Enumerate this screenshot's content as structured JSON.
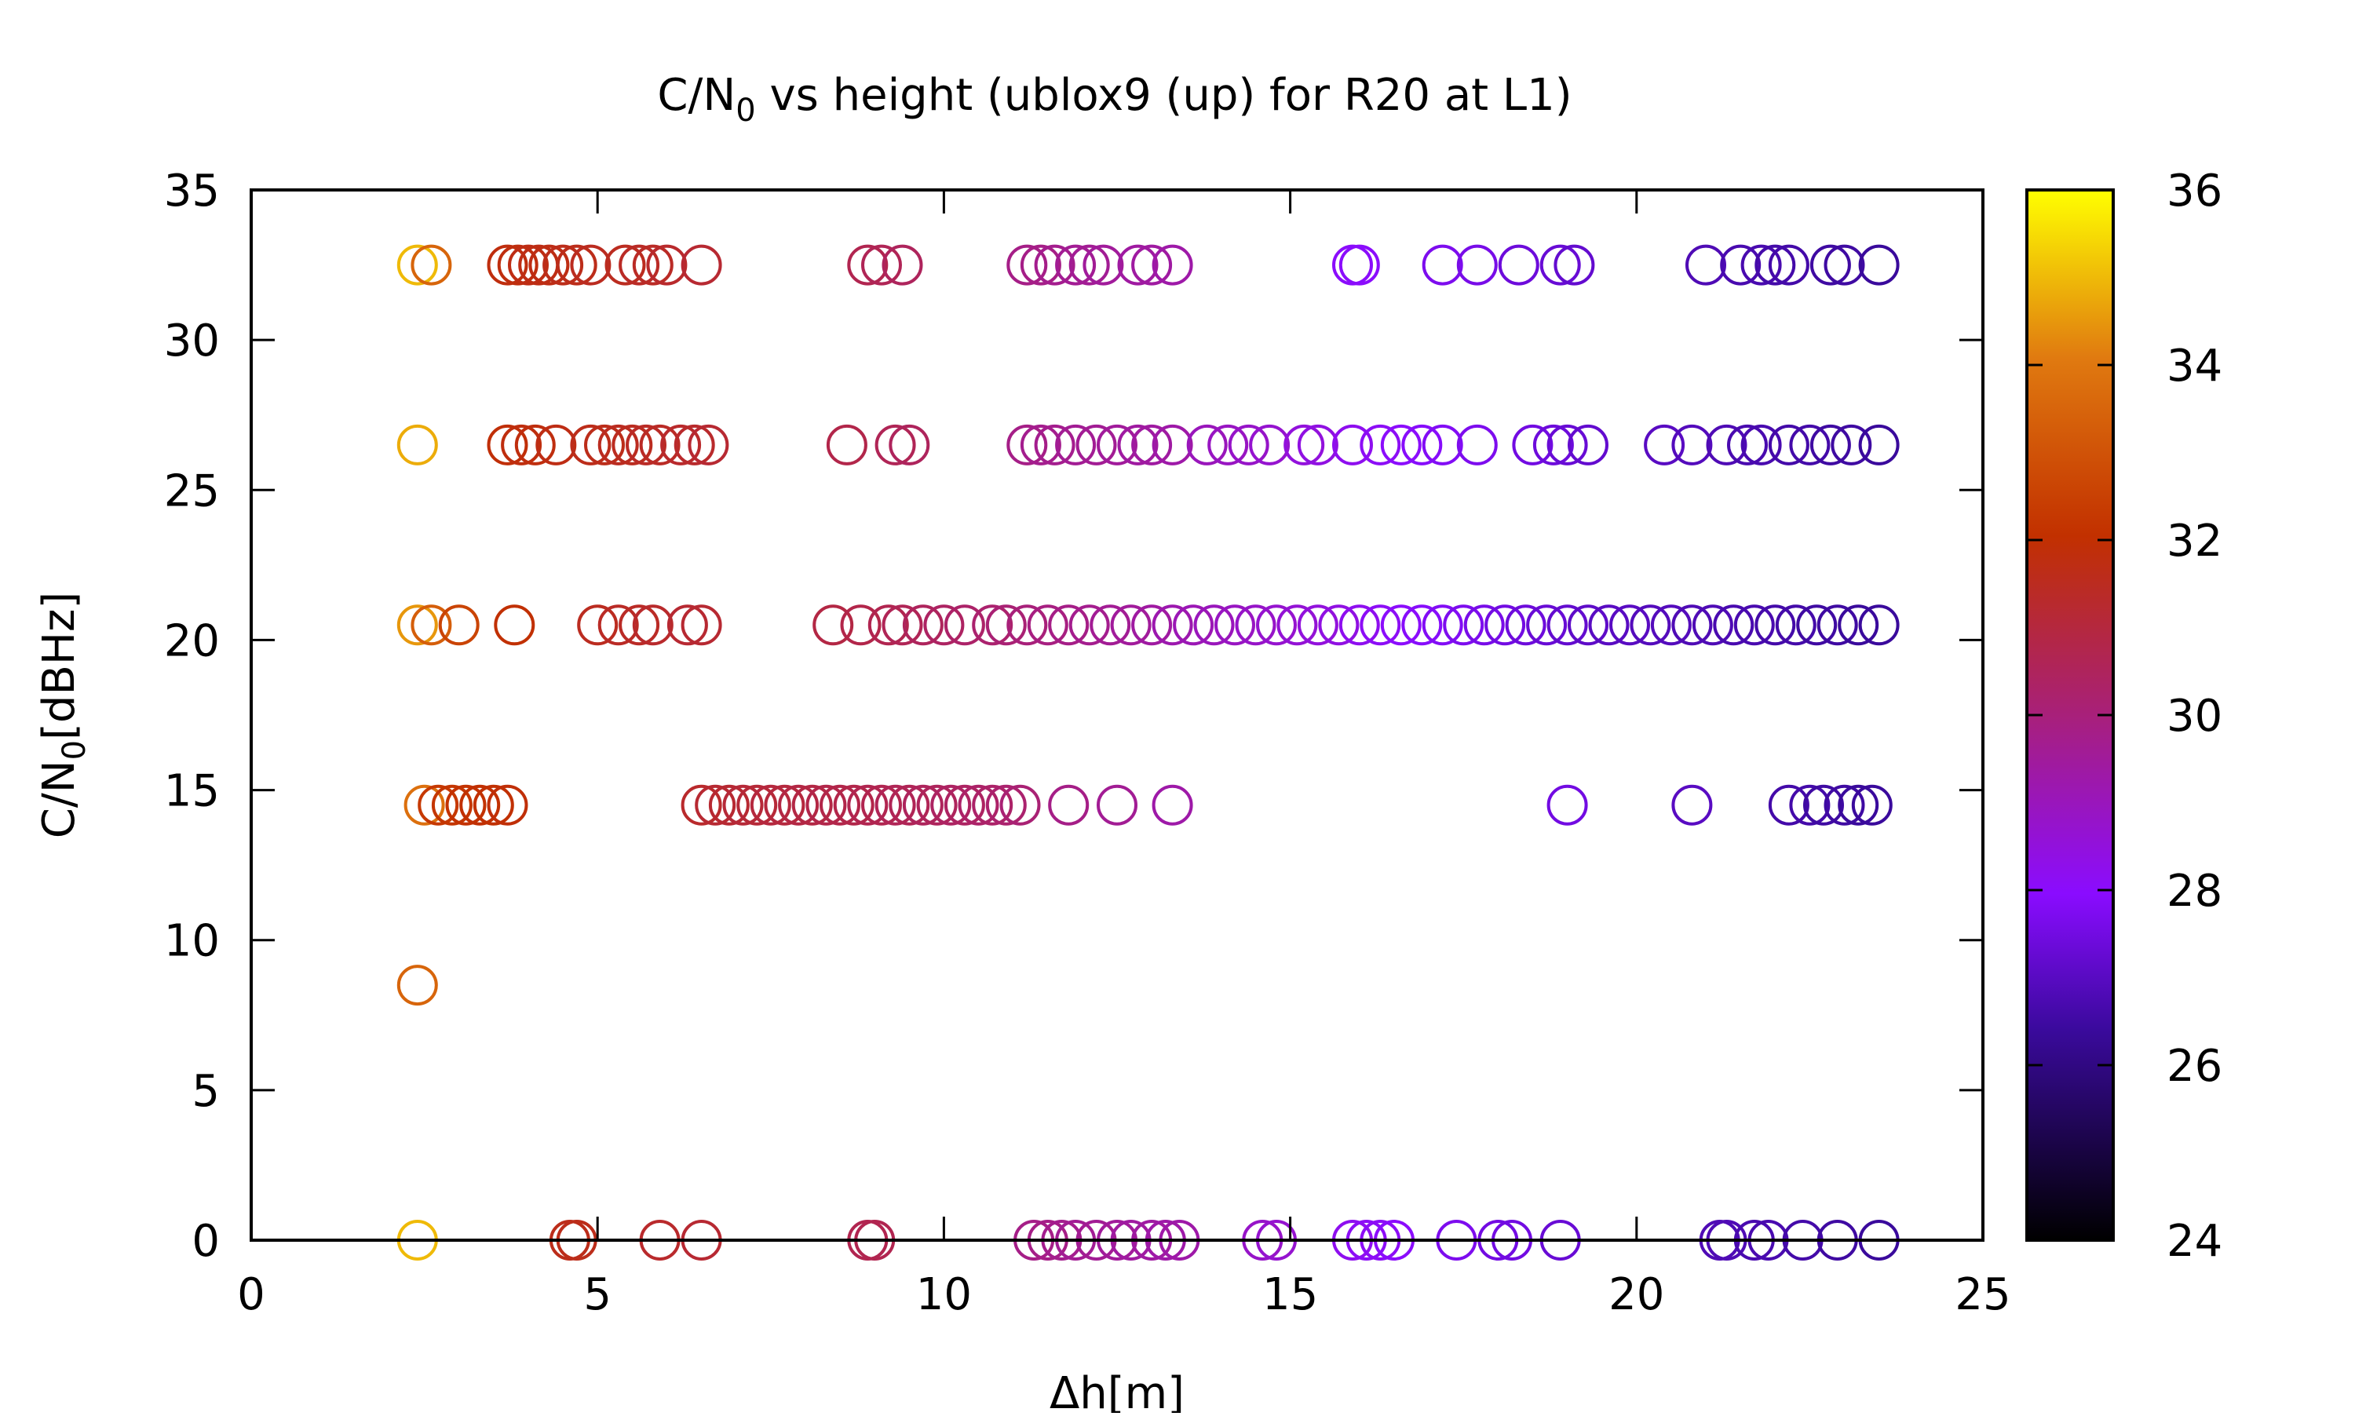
{
  "chart_data": {
    "type": "scatter",
    "title": "C/N0 vs height (ublox9 (up) for R20 at L1)",
    "title_parts": {
      "before": "C/N",
      "sub": "0",
      "after": " vs height (ublox9 (up) for R20 at L1)"
    },
    "xlabel": "Δh[m]",
    "ylabel": "C/N0[dBHz]",
    "ylabel_parts": {
      "before": "C/N",
      "sub": "0",
      "after": "[dBHz]"
    },
    "xlim": [
      0,
      25
    ],
    "ylim": [
      0,
      35
    ],
    "xticks": [
      0,
      5,
      10,
      15,
      20,
      25
    ],
    "yticks": [
      0,
      5,
      10,
      15,
      20,
      25,
      30,
      35
    ],
    "grid": false,
    "legend": "none",
    "marker": "open-circle",
    "colorbar": {
      "range": [
        24,
        36
      ],
      "ticks": [
        24,
        26,
        28,
        30,
        32,
        34,
        36
      ],
      "colormap": "gnuplot (black-purple-red-orange-yellow)"
    },
    "series": [
      {
        "y": 32.5,
        "points": [
          [
            2.4,
            35.0
          ],
          [
            2.6,
            33.5
          ],
          [
            3.7,
            31.8
          ],
          [
            3.85,
            31.8
          ],
          [
            4.0,
            31.7
          ],
          [
            4.15,
            31.7
          ],
          [
            4.3,
            31.7
          ],
          [
            4.5,
            31.6
          ],
          [
            4.7,
            31.6
          ],
          [
            4.9,
            31.5
          ],
          [
            5.4,
            31.5
          ],
          [
            5.6,
            31.4
          ],
          [
            5.8,
            31.4
          ],
          [
            6.0,
            31.3
          ],
          [
            6.5,
            31.2
          ],
          [
            8.9,
            30.7
          ],
          [
            9.1,
            30.6
          ],
          [
            9.4,
            30.5
          ],
          [
            11.2,
            29.8
          ],
          [
            11.4,
            29.8
          ],
          [
            11.6,
            29.7
          ],
          [
            11.9,
            29.6
          ],
          [
            12.1,
            29.6
          ],
          [
            12.3,
            29.5
          ],
          [
            12.8,
            29.4
          ],
          [
            13.0,
            29.4
          ],
          [
            13.3,
            29.3
          ],
          [
            15.9,
            28.0
          ],
          [
            16.0,
            28.0
          ],
          [
            17.2,
            27.7
          ],
          [
            17.7,
            27.6
          ],
          [
            18.3,
            27.4
          ],
          [
            18.9,
            27.3
          ],
          [
            19.1,
            27.2
          ],
          [
            21.0,
            26.8
          ],
          [
            21.5,
            26.7
          ],
          [
            21.8,
            26.7
          ],
          [
            22.0,
            26.6
          ],
          [
            22.2,
            26.6
          ],
          [
            22.8,
            26.5
          ],
          [
            23.0,
            26.5
          ],
          [
            23.5,
            26.4
          ]
        ]
      },
      {
        "y": 26.5,
        "points": [
          [
            2.4,
            34.8
          ],
          [
            3.7,
            31.9
          ],
          [
            3.9,
            31.8
          ],
          [
            4.1,
            31.8
          ],
          [
            4.4,
            31.7
          ],
          [
            4.9,
            31.6
          ],
          [
            5.1,
            31.6
          ],
          [
            5.3,
            31.5
          ],
          [
            5.5,
            31.5
          ],
          [
            5.7,
            31.4
          ],
          [
            5.9,
            31.4
          ],
          [
            6.2,
            31.3
          ],
          [
            6.4,
            31.3
          ],
          [
            6.6,
            31.2
          ],
          [
            8.6,
            30.8
          ],
          [
            9.3,
            30.6
          ],
          [
            9.5,
            30.5
          ],
          [
            11.2,
            29.8
          ],
          [
            11.4,
            29.7
          ],
          [
            11.6,
            29.7
          ],
          [
            11.9,
            29.6
          ],
          [
            12.2,
            29.6
          ],
          [
            12.5,
            29.5
          ],
          [
            12.8,
            29.4
          ],
          [
            13.0,
            29.4
          ],
          [
            13.3,
            29.3
          ],
          [
            13.8,
            29.0
          ],
          [
            14.1,
            28.9
          ],
          [
            14.4,
            28.8
          ],
          [
            14.7,
            28.7
          ],
          [
            15.2,
            28.5
          ],
          [
            15.4,
            28.4
          ],
          [
            15.9,
            28.2
          ],
          [
            16.3,
            28.1
          ],
          [
            16.6,
            28.0
          ],
          [
            16.9,
            27.9
          ],
          [
            17.2,
            27.8
          ],
          [
            17.7,
            27.7
          ],
          [
            18.5,
            27.5
          ],
          [
            18.8,
            27.4
          ],
          [
            19.0,
            27.3
          ],
          [
            19.3,
            27.2
          ],
          [
            20.4,
            27.0
          ],
          [
            20.8,
            26.9
          ],
          [
            21.3,
            26.8
          ],
          [
            21.6,
            26.7
          ],
          [
            21.8,
            26.7
          ],
          [
            22.2,
            26.6
          ],
          [
            22.5,
            26.6
          ],
          [
            22.8,
            26.5
          ],
          [
            23.1,
            26.5
          ],
          [
            23.5,
            26.4
          ]
        ]
      },
      {
        "y": 20.5,
        "points": [
          [
            2.4,
            34.5
          ],
          [
            2.6,
            33.3
          ],
          [
            3.0,
            32.6
          ],
          [
            3.8,
            32.0
          ],
          [
            5.0,
            31.5
          ],
          [
            5.3,
            31.4
          ],
          [
            5.6,
            31.4
          ],
          [
            5.8,
            31.3
          ],
          [
            6.3,
            31.2
          ],
          [
            6.5,
            31.2
          ],
          [
            8.4,
            30.9
          ],
          [
            8.8,
            30.8
          ],
          [
            9.2,
            30.7
          ],
          [
            9.4,
            30.6
          ],
          [
            9.7,
            30.5
          ],
          [
            10.0,
            30.4
          ],
          [
            10.3,
            30.3
          ],
          [
            10.7,
            30.2
          ],
          [
            10.9,
            30.1
          ],
          [
            11.2,
            30.0
          ],
          [
            11.5,
            29.9
          ],
          [
            11.8,
            29.8
          ],
          [
            12.1,
            29.7
          ],
          [
            12.4,
            29.6
          ],
          [
            12.7,
            29.5
          ],
          [
            13.0,
            29.4
          ],
          [
            13.3,
            29.2
          ],
          [
            13.6,
            29.1
          ],
          [
            13.9,
            29.0
          ],
          [
            14.2,
            28.9
          ],
          [
            14.5,
            28.8
          ],
          [
            14.8,
            28.7
          ],
          [
            15.1,
            28.6
          ],
          [
            15.4,
            28.5
          ],
          [
            15.7,
            28.4
          ],
          [
            16.0,
            28.2
          ],
          [
            16.3,
            28.1
          ],
          [
            16.6,
            28.0
          ],
          [
            16.9,
            27.9
          ],
          [
            17.2,
            27.8
          ],
          [
            17.5,
            27.7
          ],
          [
            17.8,
            27.6
          ],
          [
            18.1,
            27.5
          ],
          [
            18.4,
            27.4
          ],
          [
            18.7,
            27.3
          ],
          [
            19.0,
            27.2
          ],
          [
            19.3,
            27.1
          ],
          [
            19.6,
            27.0
          ],
          [
            19.9,
            27.0
          ],
          [
            20.2,
            26.9
          ],
          [
            20.5,
            26.9
          ],
          [
            20.8,
            26.8
          ],
          [
            21.1,
            26.8
          ],
          [
            21.4,
            26.7
          ],
          [
            21.7,
            26.7
          ],
          [
            22.0,
            26.6
          ],
          [
            22.3,
            26.6
          ],
          [
            22.6,
            26.5
          ],
          [
            22.9,
            26.5
          ],
          [
            23.2,
            26.4
          ],
          [
            23.5,
            26.4
          ]
        ]
      },
      {
        "y": 14.5,
        "points": [
          [
            2.5,
            33.8
          ],
          [
            2.7,
            32.3
          ],
          [
            2.9,
            32.2
          ],
          [
            3.1,
            32.1
          ],
          [
            3.3,
            32.0
          ],
          [
            3.5,
            32.0
          ],
          [
            3.7,
            31.9
          ],
          [
            6.5,
            31.3
          ],
          [
            6.7,
            31.2
          ],
          [
            6.9,
            31.2
          ],
          [
            7.1,
            31.1
          ],
          [
            7.3,
            31.1
          ],
          [
            7.5,
            31.0
          ],
          [
            7.7,
            31.0
          ],
          [
            7.9,
            30.9
          ],
          [
            8.1,
            30.9
          ],
          [
            8.3,
            30.8
          ],
          [
            8.5,
            30.8
          ],
          [
            8.7,
            30.8
          ],
          [
            8.9,
            30.7
          ],
          [
            9.1,
            30.7
          ],
          [
            9.3,
            30.6
          ],
          [
            9.5,
            30.6
          ],
          [
            9.7,
            30.5
          ],
          [
            9.9,
            30.5
          ],
          [
            10.1,
            30.4
          ],
          [
            10.3,
            30.4
          ],
          [
            10.5,
            30.3
          ],
          [
            10.7,
            30.3
          ],
          [
            10.9,
            30.2
          ],
          [
            11.1,
            30.1
          ],
          [
            11.8,
            29.8
          ],
          [
            12.5,
            29.6
          ],
          [
            13.3,
            29.3
          ],
          [
            19.0,
            27.5
          ],
          [
            20.8,
            27.0
          ],
          [
            22.2,
            26.6
          ],
          [
            22.5,
            26.6
          ],
          [
            22.7,
            26.5
          ],
          [
            23.0,
            26.5
          ],
          [
            23.2,
            26.4
          ],
          [
            23.4,
            26.4
          ]
        ]
      },
      {
        "y": 8.5,
        "points": [
          [
            2.4,
            33.5
          ]
        ]
      },
      {
        "y": 0,
        "points": [
          [
            2.4,
            35.0
          ],
          [
            4.6,
            31.6
          ],
          [
            4.7,
            31.6
          ],
          [
            5.9,
            31.3
          ],
          [
            6.5,
            31.2
          ],
          [
            8.9,
            30.7
          ],
          [
            9.0,
            30.7
          ],
          [
            11.3,
            29.8
          ],
          [
            11.5,
            29.8
          ],
          [
            11.7,
            29.7
          ],
          [
            11.9,
            29.6
          ],
          [
            12.2,
            29.6
          ],
          [
            12.5,
            29.5
          ],
          [
            12.7,
            29.4
          ],
          [
            13.0,
            29.4
          ],
          [
            13.2,
            29.3
          ],
          [
            13.4,
            29.3
          ],
          [
            14.6,
            28.8
          ],
          [
            14.8,
            28.7
          ],
          [
            15.9,
            28.2
          ],
          [
            16.1,
            28.1
          ],
          [
            16.3,
            28.1
          ],
          [
            16.5,
            28.0
          ],
          [
            17.4,
            27.7
          ],
          [
            18.0,
            27.5
          ],
          [
            18.2,
            27.5
          ],
          [
            18.9,
            27.3
          ],
          [
            21.2,
            26.8
          ],
          [
            21.3,
            26.8
          ],
          [
            21.7,
            26.7
          ],
          [
            21.9,
            26.7
          ],
          [
            22.4,
            26.6
          ],
          [
            22.9,
            26.5
          ],
          [
            23.5,
            26.4
          ]
        ]
      }
    ]
  }
}
